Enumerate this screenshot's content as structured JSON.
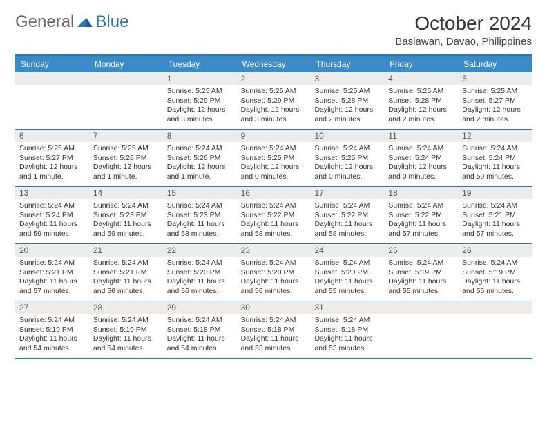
{
  "logo": {
    "part1": "General",
    "part2": "Blue"
  },
  "title": "October 2024",
  "location": "Basiawan, Davao, Philippines",
  "colors": {
    "header_bg": "#3b8bc9",
    "border": "#2e74b5",
    "date_bg": "#ececec",
    "text": "#333333",
    "logo_gray": "#666666",
    "logo_blue": "#2e74b5"
  },
  "dayNames": [
    "Sunday",
    "Monday",
    "Tuesday",
    "Wednesday",
    "Thursday",
    "Friday",
    "Saturday"
  ],
  "weeks": [
    [
      null,
      null,
      {
        "d": "1",
        "sr": "5:25 AM",
        "ss": "5:29 PM",
        "dl": "12 hours and 3 minutes."
      },
      {
        "d": "2",
        "sr": "5:25 AM",
        "ss": "5:29 PM",
        "dl": "12 hours and 3 minutes."
      },
      {
        "d": "3",
        "sr": "5:25 AM",
        "ss": "5:28 PM",
        "dl": "12 hours and 2 minutes."
      },
      {
        "d": "4",
        "sr": "5:25 AM",
        "ss": "5:28 PM",
        "dl": "12 hours and 2 minutes."
      },
      {
        "d": "5",
        "sr": "5:25 AM",
        "ss": "5:27 PM",
        "dl": "12 hours and 2 minutes."
      }
    ],
    [
      {
        "d": "6",
        "sr": "5:25 AM",
        "ss": "5:27 PM",
        "dl": "12 hours and 1 minute."
      },
      {
        "d": "7",
        "sr": "5:25 AM",
        "ss": "5:26 PM",
        "dl": "12 hours and 1 minute."
      },
      {
        "d": "8",
        "sr": "5:24 AM",
        "ss": "5:26 PM",
        "dl": "12 hours and 1 minute."
      },
      {
        "d": "9",
        "sr": "5:24 AM",
        "ss": "5:25 PM",
        "dl": "12 hours and 0 minutes."
      },
      {
        "d": "10",
        "sr": "5:24 AM",
        "ss": "5:25 PM",
        "dl": "12 hours and 0 minutes."
      },
      {
        "d": "11",
        "sr": "5:24 AM",
        "ss": "5:24 PM",
        "dl": "12 hours and 0 minutes."
      },
      {
        "d": "12",
        "sr": "5:24 AM",
        "ss": "5:24 PM",
        "dl": "11 hours and 59 minutes."
      }
    ],
    [
      {
        "d": "13",
        "sr": "5:24 AM",
        "ss": "5:24 PM",
        "dl": "11 hours and 59 minutes."
      },
      {
        "d": "14",
        "sr": "5:24 AM",
        "ss": "5:23 PM",
        "dl": "11 hours and 59 minutes."
      },
      {
        "d": "15",
        "sr": "5:24 AM",
        "ss": "5:23 PM",
        "dl": "11 hours and 58 minutes."
      },
      {
        "d": "16",
        "sr": "5:24 AM",
        "ss": "5:22 PM",
        "dl": "11 hours and 58 minutes."
      },
      {
        "d": "17",
        "sr": "5:24 AM",
        "ss": "5:22 PM",
        "dl": "11 hours and 58 minutes."
      },
      {
        "d": "18",
        "sr": "5:24 AM",
        "ss": "5:22 PM",
        "dl": "11 hours and 57 minutes."
      },
      {
        "d": "19",
        "sr": "5:24 AM",
        "ss": "5:21 PM",
        "dl": "11 hours and 57 minutes."
      }
    ],
    [
      {
        "d": "20",
        "sr": "5:24 AM",
        "ss": "5:21 PM",
        "dl": "11 hours and 57 minutes."
      },
      {
        "d": "21",
        "sr": "5:24 AM",
        "ss": "5:21 PM",
        "dl": "11 hours and 56 minutes."
      },
      {
        "d": "22",
        "sr": "5:24 AM",
        "ss": "5:20 PM",
        "dl": "11 hours and 56 minutes."
      },
      {
        "d": "23",
        "sr": "5:24 AM",
        "ss": "5:20 PM",
        "dl": "11 hours and 56 minutes."
      },
      {
        "d": "24",
        "sr": "5:24 AM",
        "ss": "5:20 PM",
        "dl": "11 hours and 55 minutes."
      },
      {
        "d": "25",
        "sr": "5:24 AM",
        "ss": "5:19 PM",
        "dl": "11 hours and 55 minutes."
      },
      {
        "d": "26",
        "sr": "5:24 AM",
        "ss": "5:19 PM",
        "dl": "11 hours and 55 minutes."
      }
    ],
    [
      {
        "d": "27",
        "sr": "5:24 AM",
        "ss": "5:19 PM",
        "dl": "11 hours and 54 minutes."
      },
      {
        "d": "28",
        "sr": "5:24 AM",
        "ss": "5:19 PM",
        "dl": "11 hours and 54 minutes."
      },
      {
        "d": "29",
        "sr": "5:24 AM",
        "ss": "5:18 PM",
        "dl": "11 hours and 54 minutes."
      },
      {
        "d": "30",
        "sr": "5:24 AM",
        "ss": "5:18 PM",
        "dl": "11 hours and 53 minutes."
      },
      {
        "d": "31",
        "sr": "5:24 AM",
        "ss": "5:18 PM",
        "dl": "11 hours and 53 minutes."
      },
      null,
      null
    ]
  ],
  "labels": {
    "sunrise": "Sunrise:",
    "sunset": "Sunset:",
    "daylight": "Daylight:"
  }
}
